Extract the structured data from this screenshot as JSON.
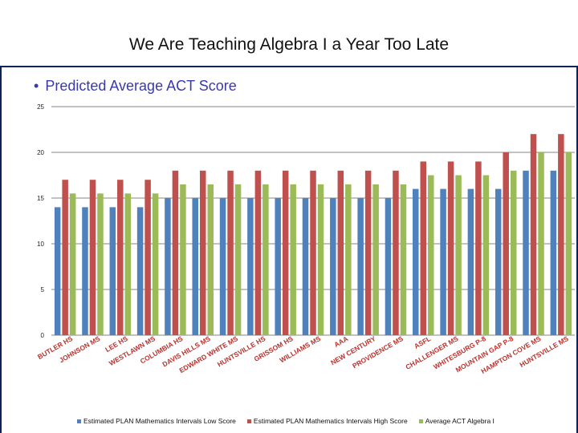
{
  "slide": {
    "title": "We Are Teaching Algebra I a Year Too Late",
    "bullet": "Predicted Average ACT Score"
  },
  "colors": {
    "low": "#4f81bd",
    "high": "#c0504d",
    "avg": "#9bbb59",
    "grid": "#9e9e9e",
    "category_label": "#b8332e"
  },
  "chart_data": {
    "type": "bar",
    "ylim": [
      0,
      25
    ],
    "yticks": [
      0,
      5,
      10,
      15,
      20,
      25
    ],
    "grid": true,
    "legend_position": "bottom",
    "categories": [
      "BUTLER HS",
      "JOHNSON MS",
      "LEE HS",
      "WESTLAWN MS",
      "COLUMBIA HS",
      "DAVIS HILLS MS",
      "EDWARD WHITE MS",
      "HUNTSVILLE HS",
      "GRISSOM HS",
      "WILLIAMS MS",
      "AAA",
      "NEW CENTURY",
      "PROVIDENCE MS",
      "ASFL",
      "CHALLENGER MS",
      "WHITESBURG P-8",
      "MOUNTAIN GAP P-8",
      "HAMPTON COVE MS",
      "HUNTSVILLE MS"
    ],
    "series": [
      {
        "name": "Estimated PLAN Mathematics Intervals Low Score",
        "values": [
          14,
          14,
          14,
          14,
          15,
          15,
          15,
          15,
          15,
          15,
          15,
          15,
          15,
          16,
          16,
          16,
          16,
          18,
          18
        ]
      },
      {
        "name": "Estimated PLAN Mathematics Intervals High Score",
        "values": [
          17,
          17,
          17,
          17,
          18,
          18,
          18,
          18,
          18,
          18,
          18,
          18,
          18,
          19,
          19,
          19,
          20,
          22,
          22
        ]
      },
      {
        "name": "Average ACT Algebra I",
        "values": [
          15.5,
          15.5,
          15.5,
          15.5,
          16.5,
          16.5,
          16.5,
          16.5,
          16.5,
          16.5,
          16.5,
          16.5,
          16.5,
          17.5,
          17.5,
          17.5,
          18,
          20,
          20
        ]
      }
    ]
  }
}
